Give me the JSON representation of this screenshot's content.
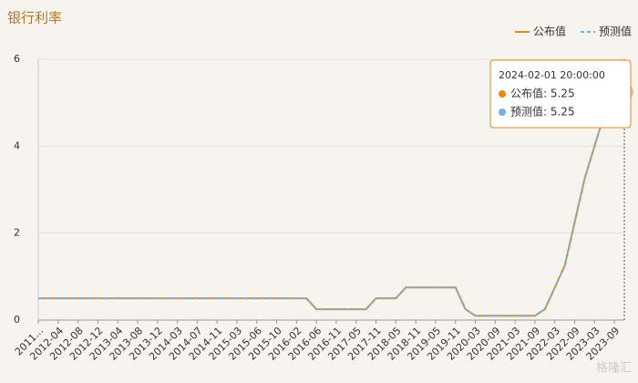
{
  "chart_data": {
    "type": "line",
    "title": "银行利率",
    "categories": [
      "2011...",
      null,
      "2012-04",
      null,
      "2012-08",
      null,
      "2012-12",
      null,
      "2013-04",
      null,
      "2013-08",
      null,
      "2013-12",
      null,
      "2014-03",
      null,
      "2014-07",
      null,
      "2014-11",
      null,
      "2015-03",
      null,
      "2015-06",
      null,
      "2015-10",
      null,
      "2016-02",
      null,
      "2016-06",
      null,
      "2016-11",
      null,
      "2017-05",
      null,
      "2017-11",
      null,
      "2018-05",
      null,
      "2018-11",
      null,
      "2019-05",
      null,
      "2019-11",
      null,
      "2020-03",
      null,
      "2020-09",
      null,
      "2021-03",
      null,
      "2021-09",
      null,
      "2022-03",
      null,
      "2022-09",
      null,
      "2023-03",
      null,
      "2023-09",
      null
    ],
    "series": [
      {
        "name": "公布值",
        "color": "#e8891f",
        "dash": false,
        "values": [
          0.5,
          0.5,
          0.5,
          0.5,
          0.5,
          0.5,
          0.5,
          0.5,
          0.5,
          0.5,
          0.5,
          0.5,
          0.5,
          0.5,
          0.5,
          0.5,
          0.5,
          0.5,
          0.5,
          0.5,
          0.5,
          0.5,
          0.5,
          0.5,
          0.5,
          0.5,
          0.5,
          0.5,
          0.25,
          0.25,
          0.25,
          0.25,
          0.25,
          0.25,
          0.5,
          0.5,
          0.5,
          0.75,
          0.75,
          0.75,
          0.75,
          0.75,
          0.75,
          0.25,
          0.1,
          0.1,
          0.1,
          0.1,
          0.1,
          0.1,
          0.1,
          0.25,
          0.75,
          1.25,
          2.25,
          3.25,
          4,
          4.75,
          5.5,
          5.25
        ]
      },
      {
        "name": "预测值",
        "color": "#6fb3e8",
        "dash": true,
        "values": [
          0.5,
          0.5,
          0.5,
          0.5,
          0.5,
          0.5,
          0.5,
          0.5,
          0.5,
          0.5,
          0.5,
          0.5,
          0.5,
          0.5,
          0.5,
          0.5,
          0.5,
          0.5,
          0.5,
          0.5,
          0.5,
          0.5,
          0.5,
          0.5,
          0.5,
          0.5,
          0.5,
          0.5,
          0.25,
          0.25,
          0.25,
          0.25,
          0.25,
          0.25,
          0.5,
          0.5,
          0.5,
          0.75,
          0.75,
          0.75,
          0.75,
          0.75,
          0.75,
          0.25,
          0.1,
          0.1,
          0.1,
          0.1,
          0.1,
          0.1,
          0.1,
          0.25,
          0.75,
          1.25,
          2.25,
          3.25,
          4,
          4.75,
          5.5,
          5.25
        ]
      }
    ],
    "ylim": [
      0,
      6
    ],
    "yticks": [
      0,
      2,
      4,
      6
    ],
    "grid": true,
    "legend": "top-right",
    "tooltip": {
      "title": "2024-02-01 20:00:00",
      "rows": [
        "公布值: 5.25",
        "预测值: 5.25"
      ],
      "index": 59
    },
    "watermark": "格隆汇"
  }
}
